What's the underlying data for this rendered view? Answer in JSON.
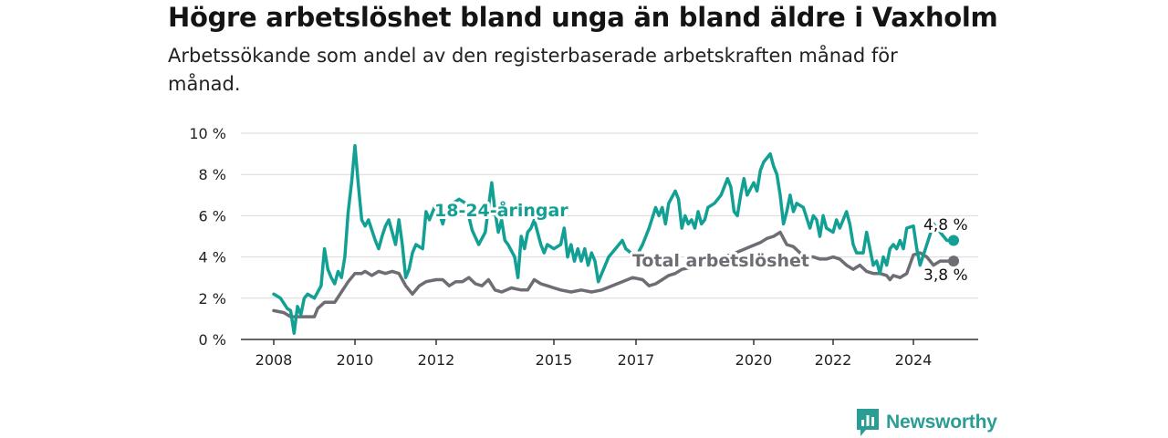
{
  "title": "Högre arbetslöshet bland unga än bland äldre i Vaxholm",
  "subtitle": "Arbetssökande som andel av den registerbaserade arbetskraften månad för månad.",
  "brand": {
    "name": "Newsworthy",
    "icon": "newsworthy-logo-icon"
  },
  "colors": {
    "youth": "#13a094",
    "total": "#6f6c73",
    "grid": "#d9d9d9",
    "axis": "#333333"
  },
  "chart_data": {
    "type": "line",
    "title": "",
    "xlabel": "",
    "ylabel": "",
    "xlim": [
      "2008-01",
      "2025-06"
    ],
    "ylim": [
      0,
      10
    ],
    "y_ticks": [
      0,
      2,
      4,
      6,
      8,
      10
    ],
    "y_tick_labels": [
      "0 %",
      "2 %",
      "4 %",
      "6 %",
      "8 %",
      "10 %"
    ],
    "x_ticks": [
      "2008-01",
      "2010-01",
      "2012-01",
      "2015-01",
      "2017-01",
      "2020-01",
      "2022-01",
      "2024-01"
    ],
    "x_tick_labels": [
      "2008",
      "2010",
      "2012",
      "2015",
      "2017",
      "2020",
      "2022",
      "2024"
    ],
    "grid": true,
    "series": [
      {
        "name": "18-24-åringar",
        "end_label": "4,8 %",
        "points": [
          [
            "2008-01",
            2.2
          ],
          [
            "2008-03",
            2.0
          ],
          [
            "2008-05",
            1.5
          ],
          [
            "2008-06",
            1.4
          ],
          [
            "2008-07",
            0.3
          ],
          [
            "2008-08",
            1.6
          ],
          [
            "2008-09",
            1.2
          ],
          [
            "2008-10",
            2.0
          ],
          [
            "2008-11",
            2.2
          ],
          [
            "2009-01",
            2.0
          ],
          [
            "2009-03",
            2.6
          ],
          [
            "2009-04",
            4.4
          ],
          [
            "2009-05",
            3.4
          ],
          [
            "2009-06",
            3.0
          ],
          [
            "2009-07",
            2.7
          ],
          [
            "2009-08",
            3.3
          ],
          [
            "2009-09",
            3.0
          ],
          [
            "2009-10",
            4.0
          ],
          [
            "2009-11",
            6.2
          ],
          [
            "2009-12",
            7.6
          ],
          [
            "2010-01",
            9.4
          ],
          [
            "2010-02",
            7.5
          ],
          [
            "2010-03",
            5.8
          ],
          [
            "2010-04",
            5.5
          ],
          [
            "2010-05",
            5.8
          ],
          [
            "2010-06",
            5.3
          ],
          [
            "2010-07",
            4.8
          ],
          [
            "2010-08",
            4.4
          ],
          [
            "2010-09",
            5.0
          ],
          [
            "2010-10",
            5.5
          ],
          [
            "2010-11",
            5.8
          ],
          [
            "2011-01",
            4.6
          ],
          [
            "2011-02",
            5.8
          ],
          [
            "2011-03",
            4.6
          ],
          [
            "2011-04",
            3.0
          ],
          [
            "2011-05",
            3.4
          ],
          [
            "2011-06",
            4.2
          ],
          [
            "2011-07",
            4.6
          ],
          [
            "2011-09",
            4.4
          ],
          [
            "2011-10",
            6.2
          ],
          [
            "2011-11",
            5.8
          ],
          [
            "2012-01",
            6.6
          ],
          [
            "2012-03",
            5.6
          ],
          [
            "2012-04",
            6.2
          ],
          [
            "2012-06",
            6.6
          ],
          [
            "2012-08",
            6.8
          ],
          [
            "2012-10",
            6.6
          ],
          [
            "2012-12",
            5.3
          ],
          [
            "2013-02",
            4.6
          ],
          [
            "2013-04",
            5.2
          ],
          [
            "2013-05",
            6.4
          ],
          [
            "2013-06",
            7.6
          ],
          [
            "2013-07",
            6.2
          ],
          [
            "2013-08",
            5.2
          ],
          [
            "2013-09",
            5.8
          ],
          [
            "2013-10",
            4.8
          ],
          [
            "2013-11",
            4.6
          ],
          [
            "2014-01",
            4.0
          ],
          [
            "2014-02",
            3.0
          ],
          [
            "2014-03",
            5.0
          ],
          [
            "2014-04",
            4.4
          ],
          [
            "2014-05",
            5.2
          ],
          [
            "2014-06",
            5.4
          ],
          [
            "2014-07",
            5.8
          ],
          [
            "2014-09",
            4.6
          ],
          [
            "2014-10",
            4.2
          ],
          [
            "2014-11",
            4.6
          ],
          [
            "2015-01",
            4.4
          ],
          [
            "2015-03",
            4.6
          ],
          [
            "2015-04",
            5.4
          ],
          [
            "2015-05",
            4.0
          ],
          [
            "2015-06",
            4.6
          ],
          [
            "2015-07",
            3.8
          ],
          [
            "2015-08",
            4.4
          ],
          [
            "2015-09",
            3.8
          ],
          [
            "2015-10",
            4.4
          ],
          [
            "2015-11",
            3.6
          ],
          [
            "2015-12",
            4.2
          ],
          [
            "2016-01",
            3.8
          ],
          [
            "2016-02",
            2.8
          ],
          [
            "2016-04",
            3.6
          ],
          [
            "2016-05",
            4.0
          ],
          [
            "2016-07",
            4.4
          ],
          [
            "2016-09",
            4.8
          ],
          [
            "2016-10",
            4.4
          ],
          [
            "2017-01",
            4.0
          ],
          [
            "2017-03",
            4.6
          ],
          [
            "2017-05",
            5.4
          ],
          [
            "2017-07",
            6.4
          ],
          [
            "2017-08",
            6.0
          ],
          [
            "2017-09",
            6.4
          ],
          [
            "2017-10",
            5.6
          ],
          [
            "2017-11",
            6.6
          ],
          [
            "2018-01",
            7.2
          ],
          [
            "2018-02",
            6.8
          ],
          [
            "2018-03",
            5.4
          ],
          [
            "2018-04",
            6.0
          ],
          [
            "2018-05",
            5.6
          ],
          [
            "2018-06",
            5.8
          ],
          [
            "2018-07",
            5.4
          ],
          [
            "2018-08",
            6.2
          ],
          [
            "2018-09",
            5.6
          ],
          [
            "2018-10",
            5.8
          ],
          [
            "2018-11",
            6.4
          ],
          [
            "2019-01",
            6.6
          ],
          [
            "2019-03",
            7.0
          ],
          [
            "2019-05",
            7.8
          ],
          [
            "2019-06",
            7.4
          ],
          [
            "2019-07",
            6.2
          ],
          [
            "2019-08",
            6.0
          ],
          [
            "2019-09",
            7.0
          ],
          [
            "2019-10",
            7.8
          ],
          [
            "2019-11",
            7.0
          ],
          [
            "2020-01",
            7.6
          ],
          [
            "2020-02",
            7.2
          ],
          [
            "2020-03",
            8.2
          ],
          [
            "2020-04",
            8.6
          ],
          [
            "2020-05",
            8.8
          ],
          [
            "2020-06",
            9.0
          ],
          [
            "2020-07",
            8.4
          ],
          [
            "2020-08",
            8.0
          ],
          [
            "2020-09",
            7.0
          ],
          [
            "2020-10",
            5.6
          ],
          [
            "2020-11",
            6.2
          ],
          [
            "2020-12",
            7.0
          ],
          [
            "2021-01",
            6.2
          ],
          [
            "2021-02",
            6.6
          ],
          [
            "2021-04",
            6.4
          ],
          [
            "2021-06",
            5.4
          ],
          [
            "2021-07",
            6.0
          ],
          [
            "2021-08",
            5.8
          ],
          [
            "2021-09",
            5.0
          ],
          [
            "2021-10",
            6.0
          ],
          [
            "2021-11",
            5.4
          ],
          [
            "2022-01",
            5.2
          ],
          [
            "2022-02",
            5.8
          ],
          [
            "2022-03",
            5.4
          ],
          [
            "2022-05",
            6.2
          ],
          [
            "2022-06",
            5.6
          ],
          [
            "2022-07",
            4.6
          ],
          [
            "2022-08",
            4.2
          ],
          [
            "2022-10",
            4.2
          ],
          [
            "2022-11",
            5.2
          ],
          [
            "2023-01",
            3.6
          ],
          [
            "2023-02",
            3.8
          ],
          [
            "2023-03",
            3.2
          ],
          [
            "2023-04",
            4.0
          ],
          [
            "2023-05",
            3.6
          ],
          [
            "2023-06",
            4.4
          ],
          [
            "2023-07",
            4.6
          ],
          [
            "2023-08",
            4.4
          ],
          [
            "2023-09",
            4.8
          ],
          [
            "2023-10",
            4.4
          ],
          [
            "2023-11",
            5.4
          ],
          [
            "2024-01",
            5.5
          ],
          [
            "2024-02",
            4.4
          ],
          [
            "2024-03",
            3.6
          ],
          [
            "2024-05",
            4.6
          ],
          [
            "2024-07",
            5.6
          ],
          [
            "2024-09",
            5.2
          ],
          [
            "2024-11",
            4.8
          ],
          [
            "2025-01",
            4.8
          ]
        ]
      },
      {
        "name": "Total arbetslöshet",
        "end_label": "3,8 %",
        "points": [
          [
            "2008-01",
            1.4
          ],
          [
            "2008-04",
            1.3
          ],
          [
            "2008-06",
            1.1
          ],
          [
            "2008-10",
            1.1
          ],
          [
            "2009-01",
            1.1
          ],
          [
            "2009-02",
            1.5
          ],
          [
            "2009-04",
            1.8
          ],
          [
            "2009-07",
            1.8
          ],
          [
            "2009-09",
            2.3
          ],
          [
            "2009-11",
            2.8
          ],
          [
            "2010-01",
            3.2
          ],
          [
            "2010-03",
            3.2
          ],
          [
            "2010-04",
            3.3
          ],
          [
            "2010-06",
            3.1
          ],
          [
            "2010-08",
            3.3
          ],
          [
            "2010-10",
            3.2
          ],
          [
            "2010-12",
            3.3
          ],
          [
            "2011-02",
            3.2
          ],
          [
            "2011-04",
            2.6
          ],
          [
            "2011-06",
            2.2
          ],
          [
            "2011-08",
            2.6
          ],
          [
            "2011-10",
            2.8
          ],
          [
            "2012-01",
            2.9
          ],
          [
            "2012-03",
            2.9
          ],
          [
            "2012-05",
            2.6
          ],
          [
            "2012-07",
            2.8
          ],
          [
            "2012-09",
            2.8
          ],
          [
            "2012-11",
            3.0
          ],
          [
            "2013-01",
            2.7
          ],
          [
            "2013-03",
            2.6
          ],
          [
            "2013-05",
            2.9
          ],
          [
            "2013-07",
            2.4
          ],
          [
            "2013-09",
            2.3
          ],
          [
            "2013-12",
            2.5
          ],
          [
            "2014-03",
            2.4
          ],
          [
            "2014-05",
            2.4
          ],
          [
            "2014-07",
            2.9
          ],
          [
            "2014-09",
            2.7
          ],
          [
            "2014-11",
            2.6
          ],
          [
            "2015-01",
            2.5
          ],
          [
            "2015-03",
            2.4
          ],
          [
            "2015-06",
            2.3
          ],
          [
            "2015-09",
            2.4
          ],
          [
            "2015-12",
            2.3
          ],
          [
            "2016-03",
            2.4
          ],
          [
            "2016-06",
            2.6
          ],
          [
            "2016-09",
            2.8
          ],
          [
            "2016-12",
            3.0
          ],
          [
            "2017-03",
            2.9
          ],
          [
            "2017-05",
            2.6
          ],
          [
            "2017-07",
            2.7
          ],
          [
            "2017-09",
            2.9
          ],
          [
            "2017-11",
            3.1
          ],
          [
            "2018-01",
            3.2
          ],
          [
            "2018-03",
            3.4
          ],
          [
            "2018-06",
            3.5
          ],
          [
            "2018-09",
            3.7
          ],
          [
            "2018-12",
            3.8
          ],
          [
            "2019-03",
            4.0
          ],
          [
            "2019-06",
            4.1
          ],
          [
            "2019-09",
            4.3
          ],
          [
            "2019-12",
            4.5
          ],
          [
            "2020-03",
            4.7
          ],
          [
            "2020-05",
            4.9
          ],
          [
            "2020-07",
            5.0
          ],
          [
            "2020-09",
            5.2
          ],
          [
            "2020-11",
            4.6
          ],
          [
            "2021-01",
            4.5
          ],
          [
            "2021-03",
            4.2
          ],
          [
            "2021-05",
            4.0
          ],
          [
            "2021-07",
            4.0
          ],
          [
            "2021-09",
            3.9
          ],
          [
            "2021-11",
            3.9
          ],
          [
            "2022-01",
            4.0
          ],
          [
            "2022-03",
            3.9
          ],
          [
            "2022-05",
            3.6
          ],
          [
            "2022-07",
            3.4
          ],
          [
            "2022-09",
            3.6
          ],
          [
            "2022-11",
            3.3
          ],
          [
            "2023-01",
            3.2
          ],
          [
            "2023-03",
            3.2
          ],
          [
            "2023-05",
            3.1
          ],
          [
            "2023-06",
            2.9
          ],
          [
            "2023-07",
            3.1
          ],
          [
            "2023-09",
            3.0
          ],
          [
            "2023-11",
            3.2
          ],
          [
            "2024-01",
            4.1
          ],
          [
            "2024-03",
            4.2
          ],
          [
            "2024-05",
            4.0
          ],
          [
            "2024-07",
            3.6
          ],
          [
            "2024-09",
            3.8
          ],
          [
            "2024-11",
            3.8
          ],
          [
            "2025-01",
            3.8
          ]
        ]
      }
    ]
  }
}
